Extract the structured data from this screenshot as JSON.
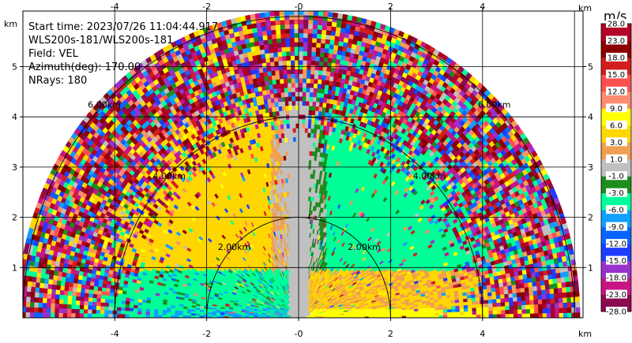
{
  "info": {
    "start_time": "Start time: 2023/07/26 11:04:44.917",
    "radar": "WLS200s-181/WLS200s-181",
    "field": "Field: VEL",
    "azimuth": "Azimuth(deg): 170.00",
    "nrays": "NRays: 180"
  },
  "chart_data": {
    "type": "heatmap",
    "title": "",
    "xlabel": "km",
    "ylabel": "km",
    "x_unit_label": "km",
    "y_unit_label": "km",
    "xlim": [
      -6.2,
      6.2
    ],
    "ylim": [
      0,
      5.8
    ],
    "x_ticks": [
      -4,
      -2,
      0,
      2,
      4
    ],
    "y_ticks": [
      1,
      2,
      3,
      4,
      5
    ],
    "x_tick_labels": [
      "-4",
      "-2",
      "-0",
      "2",
      "4"
    ],
    "y_tick_labels": [
      "1",
      "2",
      "3",
      "4",
      "5"
    ],
    "range_rings_km": [
      2,
      4,
      6
    ],
    "ring_labels": [
      "2.00km",
      "4.00km",
      "6.00km"
    ],
    "grid": true,
    "colorbar": {
      "unit": "m/s",
      "boundaries": [
        -28.0,
        -23.0,
        -18.0,
        -15.0,
        -12.0,
        -9.0,
        -6.0,
        -3.0,
        -1.0,
        1.0,
        3.0,
        6.0,
        9.0,
        12.0,
        15.0,
        18.0,
        23.0,
        28.0
      ],
      "labels": [
        "-28.0",
        "-23.0",
        "-18.0",
        "-15.0",
        "-12.0",
        "-9.0",
        "-6.0",
        "-3.0",
        "-1.0",
        "1.0",
        "3.0",
        "6.0",
        "9.0",
        "12.0",
        "15.0",
        "18.0",
        "23.0",
        "28.0"
      ],
      "colors": [
        "#8b0a50",
        "#c71585",
        "#9932cc",
        "#1e3cff",
        "#0a64ff",
        "#0fa0ff",
        "#00ff99",
        "#1e8c1e",
        "#c0c0c0",
        "#f0a050",
        "#ffd700",
        "#ffff00",
        "#ff8c6e",
        "#ff5050",
        "#d21e1e",
        "#8b0000",
        "#b40028"
      ]
    },
    "sectors": [
      {
        "region": "near-left (0–2 km, low elevation)",
        "value_range": [
          -6,
          -3
        ]
      },
      {
        "region": "near-right (0–2 km, low elevation)",
        "value_range": [
          1,
          6
        ]
      },
      {
        "region": "mid-left (2–4 km, upper)",
        "value_range": [
          1,
          6
        ]
      },
      {
        "region": "mid-right (2–4 km, upper)",
        "value_range": [
          -6,
          -3
        ]
      },
      {
        "region": "vertical beam center",
        "value_range": [
          -1,
          1
        ]
      },
      {
        "region": "far range (>4 km)",
        "value_range": [
          -28,
          28
        ],
        "note": "noise"
      }
    ]
  }
}
